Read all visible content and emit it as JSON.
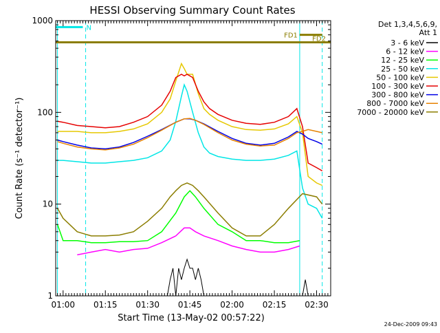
{
  "chart_data": {
    "type": "line",
    "title": "HESSI Observing Summary Count Rates",
    "xlabel": "Start Time (13-May-02 00:57:22)",
    "ylabel": "Count Rate (s⁻¹ detector⁻¹)",
    "yscale": "log",
    "ylim": [
      1,
      1000
    ],
    "xlim": [
      "00:57:22",
      "02:35:00"
    ],
    "yticks": [
      "1",
      "10",
      "100",
      "1000"
    ],
    "xticks": [
      "01:00",
      "01:15",
      "01:30",
      "01:45",
      "02:00",
      "02:15",
      "02:30"
    ],
    "legend_position": "right",
    "legend_header": [
      "Det 1,3,4,5,6,9,",
      "Att 1"
    ],
    "footer_date": "24-Dec-2009 09:43",
    "markers": {
      "bars": [
        {
          "label": "N",
          "x_start": "00:57:22",
          "x_end": "01:07:00",
          "y": 850,
          "color": "#00e6e6"
        },
        {
          "label": "FD1",
          "x_start": "02:24:00",
          "x_end": "02:32:00",
          "y": 700,
          "color": "#8b7d00"
        },
        {
          "label": "FD2",
          "x_start": "00:57:22",
          "x_end": "02:35:00",
          "y": 580,
          "color": "#8b7d00"
        }
      ],
      "vlines_solid": [
        "00:58:00",
        "02:24:00"
      ],
      "vlines_dashed": [
        "01:08:00",
        "02:32:00"
      ],
      "vline_color": "#00e6e6"
    },
    "series": [
      {
        "name": "3 - 6 keV",
        "color": "#000000",
        "x": [
          "01:37",
          "01:38",
          "01:39",
          "01:40",
          "01:41",
          "01:42",
          "01:43",
          "01:44",
          "01:45",
          "01:46",
          "01:47",
          "01:48",
          "01:49",
          "01:50",
          "02:25",
          "02:26",
          "02:27"
        ],
        "y": [
          1.0,
          1.5,
          2.0,
          1.0,
          2.0,
          1.5,
          2.0,
          2.5,
          2.0,
          2.0,
          1.5,
          2.0,
          1.5,
          1.0,
          1.0,
          1.5,
          1.0
        ]
      },
      {
        "name": "6 - 12 keV",
        "color": "#ff00ff",
        "x": [
          "01:05",
          "01:10",
          "01:15",
          "01:20",
          "01:25",
          "01:30",
          "01:35",
          "01:40",
          "01:43",
          "01:45",
          "01:47",
          "01:50",
          "01:55",
          "02:00",
          "02:05",
          "02:10",
          "02:15",
          "02:20",
          "02:24"
        ],
        "y": [
          2.8,
          3.0,
          3.2,
          3.0,
          3.2,
          3.3,
          3.8,
          4.5,
          5.5,
          5.5,
          5.0,
          4.5,
          4.0,
          3.5,
          3.2,
          3.0,
          3.0,
          3.2,
          3.5
        ]
      },
      {
        "name": "12 - 25 keV",
        "color": "#00ff00",
        "x": [
          "00:58",
          "01:00",
          "01:05",
          "01:10",
          "01:15",
          "01:20",
          "01:25",
          "01:30",
          "01:35",
          "01:40",
          "01:43",
          "01:45",
          "01:47",
          "01:50",
          "01:55",
          "02:00",
          "02:05",
          "02:10",
          "02:15",
          "02:20",
          "02:24"
        ],
        "y": [
          6.0,
          4.0,
          4.0,
          3.8,
          3.8,
          3.9,
          3.9,
          4.0,
          5.0,
          8.0,
          12.0,
          14.0,
          12.0,
          9.0,
          6.0,
          5.0,
          4.0,
          4.0,
          3.8,
          3.8,
          4.0
        ]
      },
      {
        "name": "25 - 50 keV",
        "color": "#00e6e6",
        "x": [
          "00:58",
          "01:00",
          "01:05",
          "01:10",
          "01:15",
          "01:20",
          "01:25",
          "01:30",
          "01:35",
          "01:38",
          "01:40",
          "01:42",
          "01:43",
          "01:44",
          "01:46",
          "01:48",
          "01:50",
          "01:52",
          "01:55",
          "02:00",
          "02:05",
          "02:10",
          "02:15",
          "02:20",
          "02:23",
          "02:25",
          "02:27",
          "02:30",
          "02:32"
        ],
        "y": [
          30,
          30,
          29,
          28,
          28,
          29,
          30,
          32,
          38,
          50,
          80,
          150,
          200,
          170,
          100,
          60,
          42,
          36,
          33,
          31,
          30,
          30,
          31,
          34,
          38,
          15,
          10,
          9,
          7
        ]
      },
      {
        "name": "50 - 100 keV",
        "color": "#e6c800",
        "x": [
          "00:58",
          "01:00",
          "01:05",
          "01:10",
          "01:15",
          "01:20",
          "01:25",
          "01:30",
          "01:35",
          "01:38",
          "01:40",
          "01:42",
          "01:43",
          "01:44",
          "01:46",
          "01:48",
          "01:50",
          "01:52",
          "01:55",
          "02:00",
          "02:05",
          "02:10",
          "02:15",
          "02:20",
          "02:23",
          "02:25",
          "02:27",
          "02:30",
          "02:32"
        ],
        "y": [
          62,
          62,
          62,
          60,
          60,
          62,
          66,
          75,
          100,
          140,
          220,
          340,
          300,
          260,
          260,
          160,
          110,
          95,
          82,
          70,
          65,
          64,
          66,
          75,
          90,
          60,
          20,
          17,
          16
        ]
      },
      {
        "name": "100 - 300 keV",
        "color": "#e60000",
        "x": [
          "00:58",
          "01:00",
          "01:05",
          "01:10",
          "01:15",
          "01:20",
          "01:25",
          "01:30",
          "01:35",
          "01:38",
          "01:40",
          "01:42",
          "01:43",
          "01:44",
          "01:46",
          "01:48",
          "01:50",
          "01:52",
          "01:55",
          "02:00",
          "02:05",
          "02:10",
          "02:15",
          "02:20",
          "02:23",
          "02:25",
          "02:27",
          "02:30",
          "02:32"
        ],
        "y": [
          80,
          78,
          72,
          70,
          68,
          70,
          78,
          90,
          120,
          170,
          240,
          260,
          250,
          260,
          240,
          170,
          130,
          110,
          95,
          82,
          76,
          74,
          78,
          90,
          110,
          70,
          28,
          25,
          23
        ]
      },
      {
        "name": "300 - 800 keV",
        "color": "#0000e6",
        "x": [
          "00:58",
          "01:00",
          "01:05",
          "01:10",
          "01:15",
          "01:20",
          "01:25",
          "01:30",
          "01:35",
          "01:40",
          "01:43",
          "01:45",
          "01:47",
          "01:50",
          "01:55",
          "02:00",
          "02:05",
          "02:10",
          "02:15",
          "02:20",
          "02:23",
          "02:25",
          "02:27",
          "02:30",
          "02:32"
        ],
        "y": [
          50,
          48,
          44,
          41,
          40,
          42,
          47,
          55,
          65,
          78,
          85,
          85,
          82,
          75,
          62,
          52,
          46,
          44,
          46,
          54,
          62,
          58,
          52,
          48,
          45
        ]
      },
      {
        "name": "800 - 7000 keV",
        "color": "#e68200",
        "x": [
          "00:58",
          "01:00",
          "01:05",
          "01:10",
          "01:15",
          "01:20",
          "01:25",
          "01:30",
          "01:35",
          "01:40",
          "01:43",
          "01:45",
          "01:47",
          "01:50",
          "01:55",
          "02:00",
          "02:05",
          "02:10",
          "02:15",
          "02:20",
          "02:23",
          "02:25",
          "02:27",
          "02:30",
          "02:32"
        ],
        "y": [
          48,
          46,
          42,
          40,
          39,
          41,
          45,
          53,
          64,
          78,
          85,
          86,
          82,
          74,
          60,
          50,
          45,
          43,
          44,
          52,
          60,
          62,
          65,
          62,
          60
        ]
      },
      {
        "name": "7000 - 20000 keV",
        "color": "#8b7d00",
        "x": [
          "00:58",
          "01:00",
          "01:05",
          "01:10",
          "01:15",
          "01:20",
          "01:25",
          "01:30",
          "01:35",
          "01:38",
          "01:40",
          "01:42",
          "01:44",
          "01:46",
          "01:48",
          "01:50",
          "01:55",
          "02:00",
          "02:05",
          "02:10",
          "02:15",
          "02:20",
          "02:25",
          "02:30",
          "02:32"
        ],
        "y": [
          9,
          7,
          5,
          4.5,
          4.5,
          4.6,
          5.0,
          6.5,
          9.0,
          12,
          14,
          16,
          17,
          16,
          14,
          12,
          8,
          5.5,
          4.5,
          4.5,
          6.0,
          9.0,
          13,
          12,
          10
        ]
      }
    ]
  }
}
